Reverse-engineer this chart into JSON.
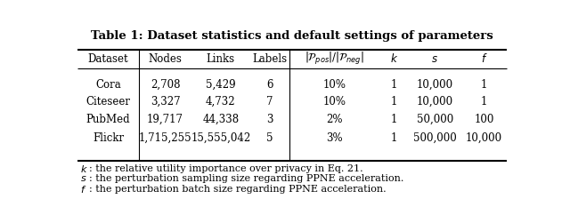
{
  "title": "Table 1: Dataset statistics and default settings of parameters",
  "col_headers_plain": [
    "Dataset",
    "Nodes",
    "Links",
    "Labels"
  ],
  "col_headers_math": [
    "|\\mathcal{P}_{pos}|/|\\mathcal{P}_{neg}|",
    "k",
    "s",
    "f"
  ],
  "rows": [
    [
      "Cora",
      "2,708",
      "5,429",
      "6",
      "10%",
      "1",
      "10,000",
      "1"
    ],
    [
      "Citeseer",
      "3,327",
      "4,732",
      "7",
      "10%",
      "1",
      "10,000",
      "1"
    ],
    [
      "PubMed",
      "19,717",
      "44,338",
      "3",
      "2%",
      "1",
      "50,000",
      "100"
    ],
    [
      "Flickr",
      "1,715,255",
      "15,555,042",
      "5",
      "3%",
      "1",
      "500,000",
      "10,000"
    ]
  ],
  "background": "#ffffff",
  "text_color": "#000000",
  "fontsize": 8.5,
  "title_fontsize": 9.5,
  "footnote_fontsize": 8.0
}
